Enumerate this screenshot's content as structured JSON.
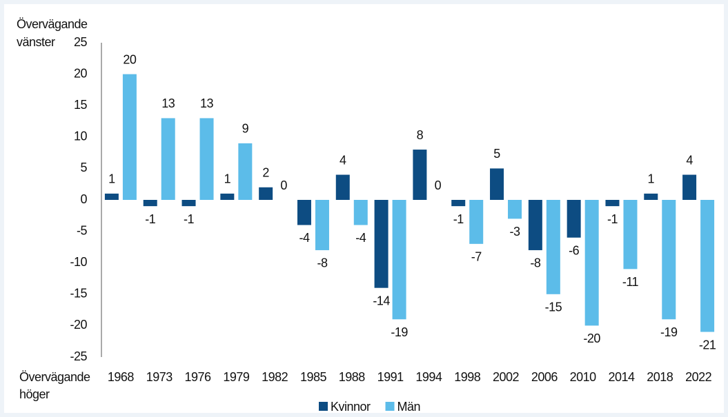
{
  "chart_data": {
    "type": "bar",
    "y_label_top": [
      "Övervägande",
      "vänster"
    ],
    "y_label_bottom": [
      "Övervägande",
      "höger"
    ],
    "categories": [
      "1968",
      "1973",
      "1976",
      "1979",
      "1982",
      "1985",
      "1988",
      "1991",
      "1994",
      "1998",
      "2002",
      "2006",
      "2010",
      "2014",
      "2018",
      "2022"
    ],
    "series": [
      {
        "name": "Kvinnor",
        "color": "#0d4c82",
        "values": [
          1,
          -1,
          -1,
          1,
          2,
          -4,
          4,
          -14,
          8,
          -1,
          5,
          -8,
          -6,
          -1,
          1,
          4
        ]
      },
      {
        "name": "Män",
        "color": "#5cbce9",
        "values": [
          20,
          13,
          13,
          9,
          0,
          -8,
          -4,
          -19,
          0,
          -7,
          -3,
          -15,
          -20,
          -11,
          -19,
          -21
        ]
      }
    ],
    "ylim": [
      -25,
      25
    ],
    "yticks": [
      -25,
      -20,
      -15,
      -10,
      -5,
      0,
      5,
      10,
      15,
      20,
      25
    ],
    "grid": false,
    "legend": "bottom"
  }
}
